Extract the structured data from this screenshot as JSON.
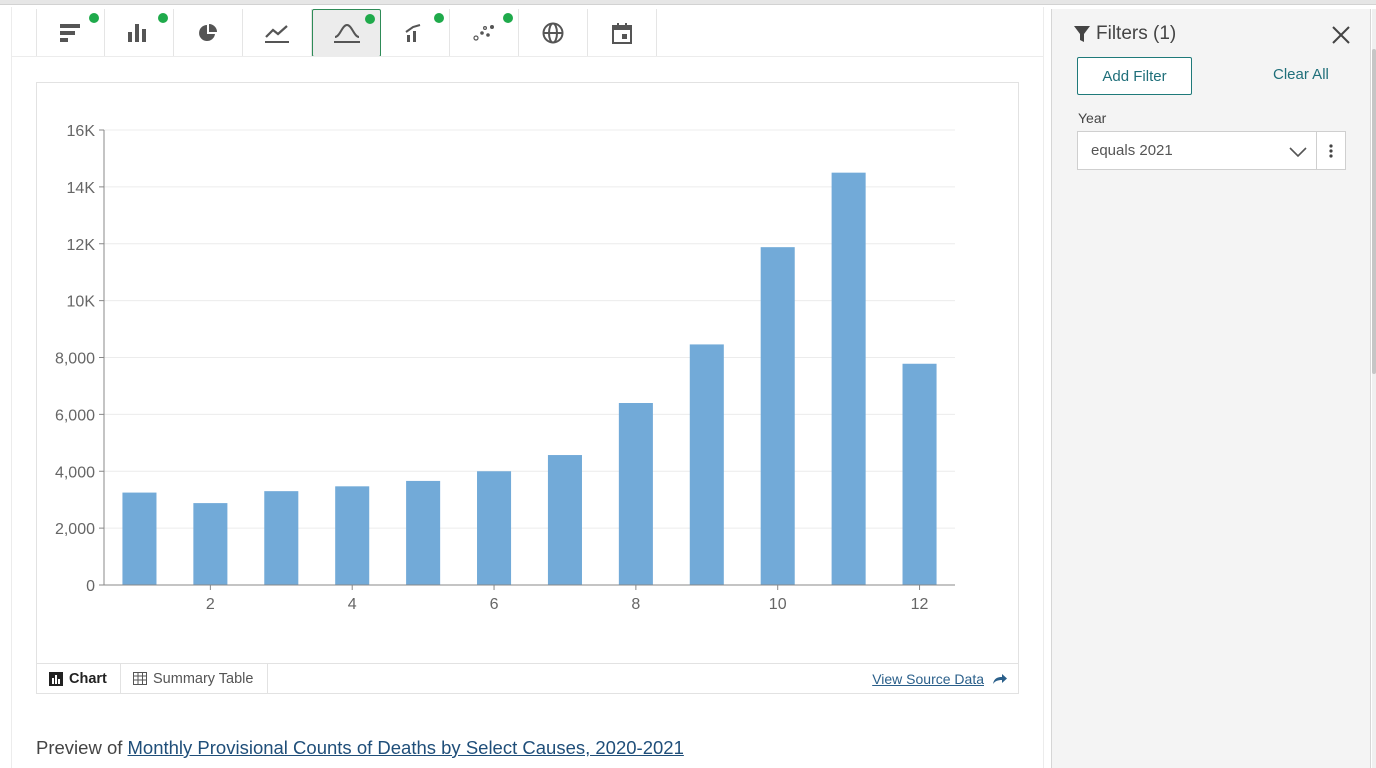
{
  "viz_toolbar": {
    "buttons": [
      {
        "name": "horizontal-bar-chart",
        "active": false,
        "has_dot": true
      },
      {
        "name": "column-chart",
        "active": false,
        "has_dot": true
      },
      {
        "name": "pie-chart",
        "active": false,
        "has_dot": false
      },
      {
        "name": "line-chart",
        "active": false,
        "has_dot": false
      },
      {
        "name": "histogram-chart",
        "active": true,
        "has_dot": true
      },
      {
        "name": "combo-chart",
        "active": false,
        "has_dot": true
      },
      {
        "name": "scatter-chart",
        "active": false,
        "has_dot": true
      },
      {
        "name": "map",
        "active": false,
        "has_dot": false
      },
      {
        "name": "calendar",
        "active": false,
        "has_dot": false
      }
    ],
    "dot_color": "#1faa4b"
  },
  "chart_data": {
    "type": "bar",
    "x": [
      1,
      2,
      3,
      4,
      5,
      6,
      7,
      8,
      9,
      10,
      11,
      12
    ],
    "values": [
      3250,
      2880,
      3300,
      3470,
      3660,
      4000,
      4570,
      6400,
      8460,
      11880,
      14500,
      7780
    ],
    "xticks": [
      2,
      4,
      6,
      8,
      10,
      12
    ],
    "xtick_labels": [
      "2",
      "4",
      "6",
      "8",
      "10",
      "12"
    ],
    "yticks": [
      0,
      2000,
      4000,
      6000,
      8000,
      10000,
      12000,
      14000,
      16000
    ],
    "ytick_labels": [
      "0",
      "2,000",
      "4,000",
      "6,000",
      "8,000",
      "10K",
      "12K",
      "14K",
      "16K"
    ],
    "ylim": [
      0,
      16000
    ],
    "xlim": [
      0.5,
      12.5
    ],
    "bar_color": "#72aad8",
    "grid": true,
    "title": "",
    "xlabel": "",
    "ylabel": ""
  },
  "card_footer": {
    "chart_tab": "Chart",
    "table_tab": "Summary Table",
    "view_source": "View Source Data"
  },
  "preview": {
    "prefix": "Preview of ",
    "link": "Monthly Provisional Counts of Deaths by Select Causes, 2020-2021"
  },
  "filters": {
    "title": "Filters (1)",
    "add_filter": "Add Filter",
    "clear_all": "Clear All",
    "field_label": "Year",
    "field_value": "equals 2021"
  }
}
